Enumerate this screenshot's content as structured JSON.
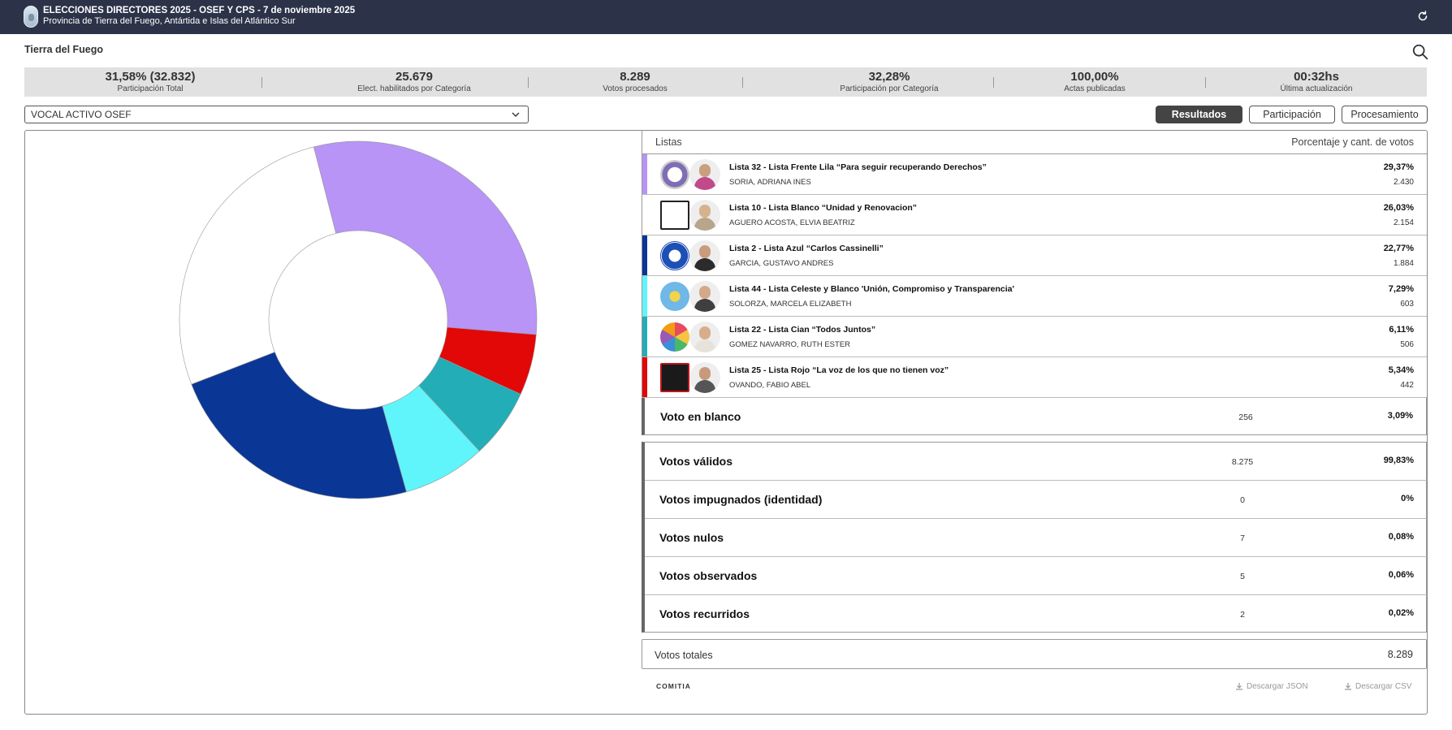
{
  "header": {
    "title": "ELECCIONES DIRECTORES 2025 - OSEF Y CPS - 7 de noviembre 2025",
    "subtitle": "Provincia de Tierra del Fuego, Antártida e Islas del Atlántico Sur"
  },
  "location": "Tierra del Fuego",
  "stats": [
    {
      "value": "31,58% (32.832)",
      "label": "Participación Total"
    },
    {
      "value": "25.679",
      "label": "Elect. habilitados por Categoría"
    },
    {
      "value": "8.289",
      "label": "Votos procesados"
    },
    {
      "value": "32,28%",
      "label": "Participación por Categoría"
    },
    {
      "value": "100,00%",
      "label": "Actas publicadas"
    },
    {
      "value": "00:32hs",
      "label": "Última actualización"
    }
  ],
  "category_select": {
    "selected": "VOCAL ACTIVO OSEF"
  },
  "tabs": [
    "Resultados",
    "Participación",
    "Procesamiento"
  ],
  "table": {
    "col_lists": "Listas",
    "col_values": "Porcentaje y cant. de votos",
    "rows": [
      {
        "name": "Lista 32 - Lista Frente Lila “Para seguir recuperando Derechos”",
        "candidate": "SORIA, ADRIANA INES",
        "pct": "29,37%",
        "count": "2.430",
        "color": "#b794f6"
      },
      {
        "name": "Lista 10 - Lista Blanco “Unidad y Renovacion”",
        "candidate": "AGUERO ACOSTA, ELVIA BEATRIZ",
        "pct": "26,03%",
        "count": "2.154",
        "color": "#ffffff"
      },
      {
        "name": "Lista 2 - Lista Azul “Carlos Cassinelli”",
        "candidate": "GARCIA, GUSTAVO ANDRES",
        "pct": "22,77%",
        "count": "1.884",
        "color": "#0a3696"
      },
      {
        "name": "Lista 44 - Lista Celeste y Blanco 'Unión, Compromiso y Transparencia'",
        "candidate": "SOLORZA, MARCELA ELIZABETH",
        "pct": "7,29%",
        "count": "603",
        "color": "#5ff5fa"
      },
      {
        "name": "Lista 22 - Lista Cian “Todos Juntos”",
        "candidate": "GOMEZ NAVARRO, RUTH ESTER",
        "pct": "6,11%",
        "count": "506",
        "color": "#23adb6"
      },
      {
        "name": "Lista 25 - Lista Rojo “La voz de los que no tienen voz”",
        "candidate": "OVANDO, FABIO ABEL",
        "pct": "5,34%",
        "count": "442",
        "color": "#e20808"
      }
    ],
    "blank": {
      "name": "Voto en blanco",
      "count": "256",
      "pct": "3,09%"
    },
    "summary": [
      {
        "name": "Votos válidos",
        "count": "8.275",
        "pct": "99,83%"
      },
      {
        "name": "Votos impugnados (identidad)",
        "count": "0",
        "pct": "0%"
      },
      {
        "name": "Votos nulos",
        "count": "7",
        "pct": "0,08%"
      },
      {
        "name": "Votos observados",
        "count": "5",
        "pct": "0,06%"
      },
      {
        "name": "Votos recurridos",
        "count": "2",
        "pct": "0,02%"
      }
    ],
    "totals": {
      "name": "Votos totales",
      "value": "8.289"
    }
  },
  "footer": {
    "brand": "COMITIA",
    "download_json": "Descargar JSON",
    "download_csv": "Descargar CSV"
  },
  "chart_data": {
    "type": "pie",
    "categories": [
      "Lista 32",
      "Lista 25",
      "Lista 22",
      "Lista 44",
      "Lista 2",
      "Lista 10"
    ],
    "values": [
      29.37,
      5.34,
      6.11,
      7.29,
      22.77,
      26.03
    ],
    "colors": [
      "#b794f6",
      "#e20808",
      "#23adb6",
      "#5ff5fa",
      "#0a3696",
      "#ffffff"
    ]
  }
}
